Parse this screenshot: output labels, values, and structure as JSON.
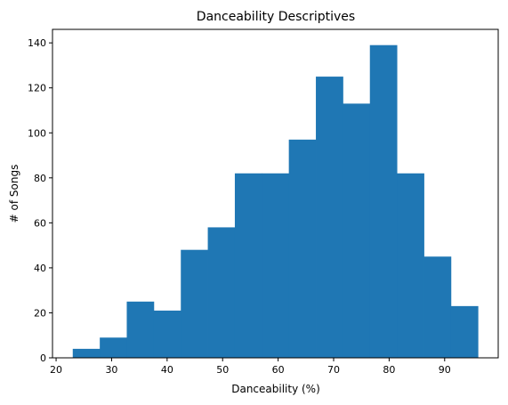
{
  "chart_data": {
    "type": "histogram",
    "title": "Danceability Descriptives",
    "xlabel": "Danceability (%)",
    "ylabel": "# of Songs",
    "xlim": [
      19.35,
      99.65
    ],
    "ylim": [
      0,
      146
    ],
    "xticks": [
      20,
      30,
      40,
      50,
      60,
      70,
      80,
      90
    ],
    "yticks": [
      0,
      20,
      40,
      60,
      80,
      100,
      120,
      140
    ],
    "bin_edges": [
      23,
      27.87,
      32.73,
      37.6,
      42.47,
      47.33,
      52.2,
      57.07,
      61.93,
      66.8,
      71.67,
      76.53,
      81.4,
      86.27,
      91.13,
      96
    ],
    "counts": [
      4,
      9,
      25,
      21,
      48,
      58,
      82,
      82,
      97,
      125,
      113,
      139,
      82,
      45,
      23
    ],
    "bar_color": "#1f77b4",
    "grid": false,
    "legend": "none"
  }
}
